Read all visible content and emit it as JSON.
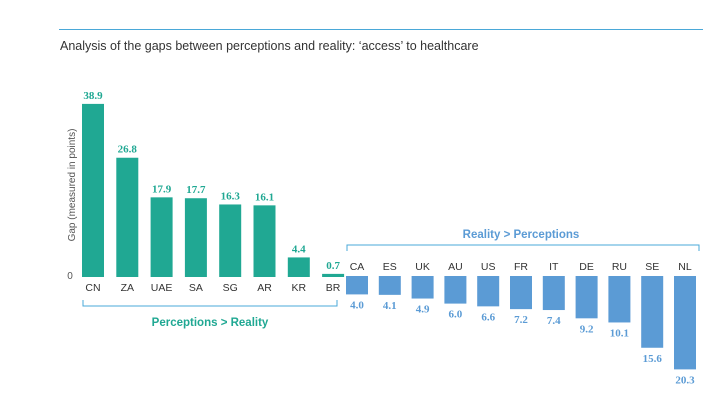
{
  "chart_data": {
    "type": "bar",
    "title": "Analysis of the gaps between perceptions and reality: ‘access’ to healthcare",
    "ylabel": "Gap (measured in points)",
    "xlabel": "",
    "zero_label": "0",
    "colors": {
      "positive": "#20a893",
      "negative": "#5b9bd5",
      "rule": "#4aa8d8"
    },
    "groups": [
      {
        "name": "Perceptions > Reality",
        "sign": 1,
        "categories": [
          "CN",
          "ZA",
          "UAE",
          "SA",
          "SG",
          "AR",
          "KR",
          "BR"
        ],
        "values": [
          38.9,
          26.8,
          17.9,
          17.7,
          16.3,
          16.1,
          4.4,
          0.7
        ],
        "labels": [
          "38.9",
          "26.8",
          "17.9",
          "17.7",
          "16.3",
          "16.1",
          "4.4",
          "0.7"
        ]
      },
      {
        "name": "Reality > Perceptions",
        "sign": -1,
        "categories": [
          "CA",
          "ES",
          "UK",
          "AU",
          "US",
          "FR",
          "IT",
          "DE",
          "RU",
          "SE",
          "NL"
        ],
        "values": [
          4.0,
          4.1,
          4.9,
          6.0,
          6.6,
          7.2,
          7.4,
          9.2,
          10.1,
          15.6,
          20.3
        ],
        "labels": [
          "4.0",
          "4.1",
          "4.9",
          "6.0",
          "6.6",
          "7.2",
          "7.4",
          "9.2",
          "10.1",
          "15.6",
          "20.3"
        ]
      }
    ]
  }
}
